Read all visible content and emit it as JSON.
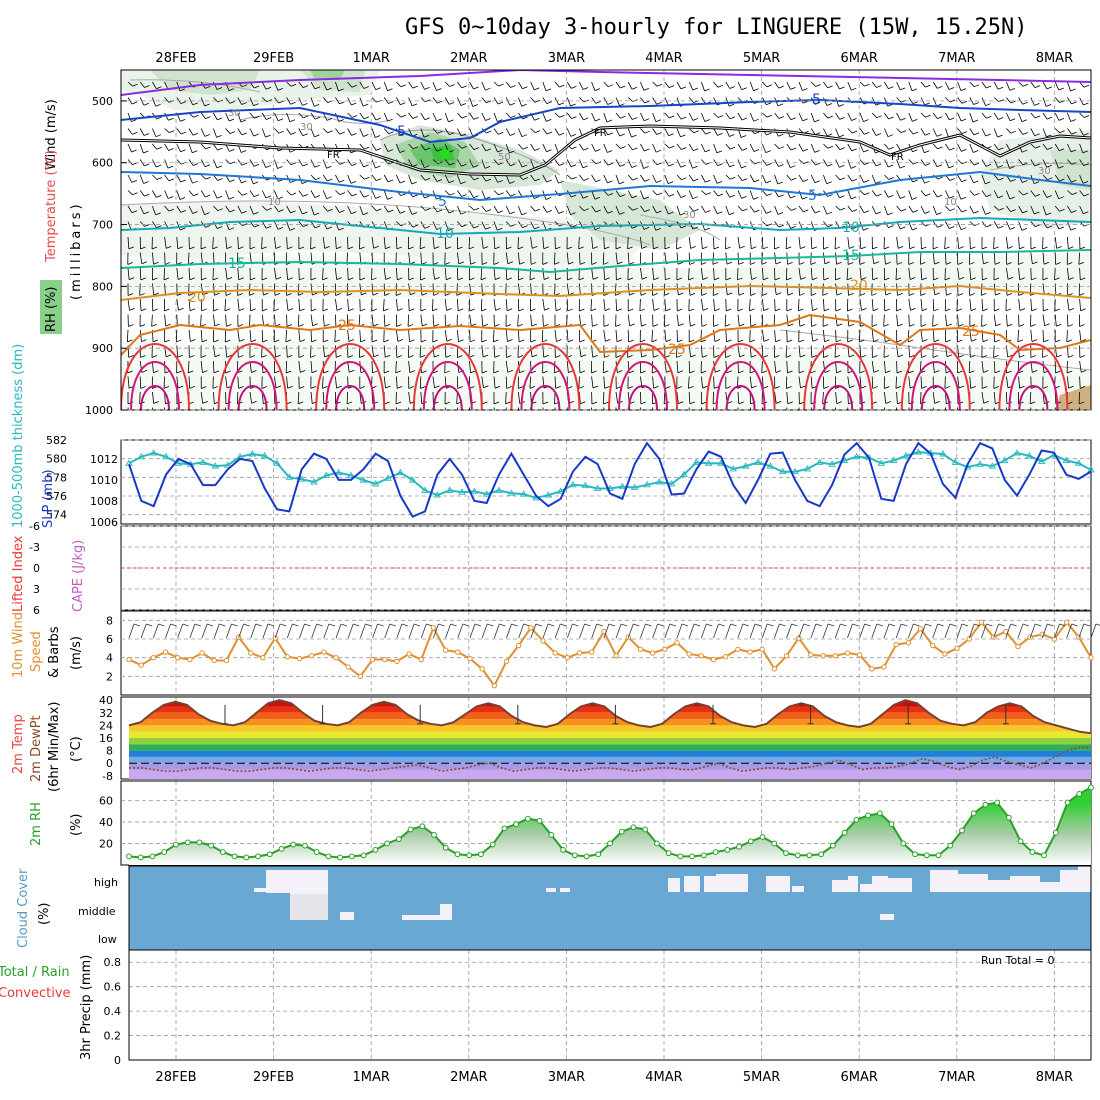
{
  "title": "GFS 0~10day 3-hourly for LINGUERE (15W, 15.25N)",
  "dates": [
    "28FEB",
    "29FEB",
    "1MAR",
    "2MAR",
    "3MAR",
    "4MAR",
    "5MAR",
    "6MAR",
    "7MAR",
    "8MAR"
  ],
  "colors": {
    "purple": "#8a2be2",
    "blue_dark": "#1846c8",
    "blue_mid": "#1e6ed8",
    "cyan": "#18a8b8",
    "teal": "#18b898",
    "orange": "#e09020",
    "orange_dark": "#e07818",
    "red": "#e83838",
    "magenta": "#d0187a",
    "rh_green": "#3fbf3f",
    "cloud": "#6aa8d4",
    "thickness": "#28b8c0",
    "slp": "#1838c8",
    "wind10": "#e09030",
    "rh2m": "#2aa02a"
  },
  "chart_data": [
    {
      "panel": "upper-air",
      "type": "heatmap",
      "ylabel_parts": [
        "Wind (m/s)",
        "Temperature (°C)",
        "RH (%)",
        "(millibars)"
      ],
      "y_ticks": [
        "500",
        "600",
        "700",
        "800",
        "900",
        "1000"
      ],
      "ylim": [
        1000,
        450
      ],
      "temperature_contours_c": [
        -5,
        5,
        10,
        15,
        20,
        25
      ],
      "contour_labels": [
        "5",
        "5",
        "5",
        "5",
        "10",
        "10",
        "15",
        "15",
        "20",
        "20",
        "25",
        "25",
        "25"
      ],
      "freezing_level_label": "FR",
      "rh_contour_labels": [
        "30",
        "30",
        "10",
        "50",
        "30",
        "10",
        "30"
      ]
    },
    {
      "panel": "thickness-slp",
      "type": "line",
      "ylabel_left": "1000-500mb thickness (dm)",
      "ylabel_right": "SLP (mb)",
      "left_ticks": [
        "582",
        "580",
        "578",
        "576",
        "574"
      ],
      "right_ticks": [
        "1012",
        "1010",
        "1008",
        "1006"
      ],
      "series": [
        {
          "name": "SLP (mb)",
          "values": [
            1011.5,
            1008,
            1007.5,
            1010.5,
            1012,
            1011.5,
            1009.5,
            1009.5,
            1011,
            1012,
            1011.8,
            1009.2,
            1007.2,
            1007,
            1011,
            1012.5,
            1012,
            1010,
            1010,
            1011,
            1012.5,
            1011.8,
            1008.5,
            1006.5,
            1007,
            1010.5,
            1012,
            1010.5,
            1008,
            1007.8,
            1010.5,
            1012.5,
            1010.5,
            1008.5,
            1007.5,
            1008.2,
            1010.8,
            1012.2,
            1011.5,
            1008.7,
            1008.2,
            1011.5,
            1013.5,
            1012,
            1008.6,
            1008.7,
            1011,
            1012.7,
            1012.2,
            1009.5,
            1007.8,
            1010,
            1012.5,
            1012.6,
            1010,
            1008,
            1007.5,
            1009.5,
            1012.4,
            1013.5,
            1012.1,
            1008.2,
            1008,
            1011.5,
            1013.5,
            1012.5,
            1009.6,
            1008.3,
            1011.5,
            1013.5,
            1013,
            1010,
            1008.5,
            1010.5,
            1012.8,
            1012.6,
            1010.5,
            1010.1,
            1010.8
          ]
        },
        {
          "name": "1000-500mb thickness (dm)",
          "values": [
            579.5,
            580.2,
            580.6,
            580.2,
            579.5,
            579.4,
            579.6,
            579.2,
            579.3,
            580.2,
            580.5,
            580.3,
            579.5,
            578,
            577.8,
            577.5,
            578.2,
            578.5,
            578.2,
            577.7,
            577.3,
            577.9,
            578.5,
            577.7,
            576.6,
            576.1,
            576.6,
            576.4,
            576.5,
            576.2,
            576.6,
            576.3,
            576.2,
            575.8,
            576.1,
            576.5,
            577.2,
            577.1,
            576.8,
            576.8,
            577,
            576.9,
            577.2,
            577.5,
            577.3,
            578.3,
            579.6,
            579.5,
            579.5,
            578.9,
            579.2,
            579.6,
            579.2,
            578.6,
            578.6,
            578.9,
            579.6,
            579.4,
            579.8,
            580.2,
            580.1,
            579.5,
            579.8,
            580.3,
            580.7,
            580.6,
            580.5,
            579.6,
            579.1,
            579.4,
            579.2,
            579.8,
            580.6,
            580.3,
            579.7,
            580.4,
            579.8,
            579.5,
            578.8
          ]
        }
      ]
    },
    {
      "panel": "stability",
      "type": "line",
      "ylabel_left": "Lifted Index",
      "ylabel_right": "CAPE (J/kg)",
      "left_ticks": [
        "-6",
        "-3",
        "0",
        "3",
        "6"
      ],
      "series": [
        {
          "name": "Lifted Index",
          "values": []
        }
      ]
    },
    {
      "panel": "wind10m",
      "type": "line",
      "ylabel": [
        "10m Wind",
        "Speed",
        "& Barbs",
        "(m/s)"
      ],
      "y_ticks": [
        "8",
        "6",
        "4",
        "2"
      ],
      "ylim": [
        0,
        9
      ],
      "series": [
        {
          "name": "10m wind speed",
          "values": [
            3.8,
            3.2,
            4.0,
            4.6,
            4.0,
            3.8,
            4.5,
            3.7,
            3.7,
            6.2,
            4.5,
            4.0,
            6.1,
            4.1,
            3.9,
            4.2,
            4.6,
            4.0,
            3.0,
            2.0,
            3.8,
            3.8,
            3.6,
            4.4,
            3.8,
            7.2,
            4.8,
            4.6,
            3.9,
            2.8,
            1.0,
            3.6,
            5.3,
            7.2,
            5.8,
            4.5,
            4.0,
            4.5,
            4.6,
            6.8,
            4.2,
            6.2,
            4.9,
            4.5,
            4.9,
            5.6,
            4.4,
            4.2,
            3.8,
            4.1,
            4.9,
            4.6,
            4.9,
            2.8,
            4.2,
            6.1,
            4.3,
            4.2,
            4.2,
            4.5,
            4.3,
            2.8,
            3.0,
            5.4,
            5.6,
            7.1,
            5.3,
            4.4,
            5.0,
            6.0,
            7.8,
            6.2,
            6.8,
            5.2,
            6.2,
            6.5,
            6.0,
            7.8,
            6.2,
            4.0
          ]
        }
      ]
    },
    {
      "panel": "temperature",
      "type": "area",
      "ylabel": [
        "2m Temp",
        "2m DewPt",
        "(6hr Min/Max)",
        "(°C)"
      ],
      "y_ticks": [
        "40",
        "32",
        "24",
        "16",
        "8",
        "0",
        "-8"
      ],
      "ylim": [
        -10,
        42
      ],
      "series": [
        {
          "name": "2m Temp",
          "values": [
            24,
            26,
            32,
            37,
            39,
            37,
            31,
            27,
            25,
            24,
            26,
            32,
            38,
            40,
            38,
            32,
            27,
            25,
            24,
            26,
            32,
            37,
            39,
            37,
            31,
            27,
            25,
            24,
            26,
            31,
            36,
            38,
            36,
            30,
            26,
            24,
            23,
            25,
            31,
            36,
            38,
            36,
            30,
            26,
            24,
            23,
            25,
            31,
            36,
            38,
            36,
            30,
            26,
            24,
            23,
            25,
            31,
            36,
            38,
            36,
            30,
            26,
            24,
            23,
            25,
            31,
            37,
            40,
            38,
            32,
            27,
            25,
            24,
            26,
            32,
            36,
            38,
            36,
            30,
            26,
            24,
            22,
            20,
            19
          ]
        },
        {
          "name": "2m DewPt",
          "values": [
            -3,
            -3,
            -4,
            -5,
            -5,
            -4,
            -3,
            -3,
            -4,
            -5,
            -5,
            -4,
            -3,
            -3,
            -4,
            -5,
            -4,
            -3,
            -3,
            -4,
            -5,
            -4,
            -3,
            -2,
            -1,
            -3,
            -5,
            -4,
            -3,
            -1,
            0,
            -3,
            -5,
            -4,
            -3,
            -3,
            -4,
            -5,
            -4,
            -3,
            -3,
            -4,
            -5,
            -4,
            -3,
            -3,
            -4,
            -4,
            -2,
            0,
            -3,
            -5,
            -4,
            -3,
            -3,
            -4,
            -3,
            -2,
            0,
            2,
            -1,
            -4,
            -3,
            -3,
            -2,
            0,
            3,
            1,
            -2,
            -4,
            -2,
            2,
            4,
            1,
            -1,
            -3,
            0,
            4,
            8,
            10,
            10
          ]
        }
      ]
    },
    {
      "panel": "rh2m",
      "type": "area",
      "ylabel": [
        "2m RH",
        "(%)"
      ],
      "y_ticks": [
        "60",
        "40",
        "20"
      ],
      "ylim": [
        0,
        78
      ],
      "series": [
        {
          "name": "2m RH",
          "values": [
            8,
            7,
            8,
            12,
            19,
            21,
            21,
            18,
            12,
            8,
            7,
            8,
            10,
            15,
            19,
            18,
            12,
            8,
            7,
            8,
            9,
            14,
            20,
            24,
            33,
            36,
            28,
            16,
            10,
            9,
            10,
            19,
            34,
            38,
            43,
            41,
            28,
            14,
            9,
            8,
            10,
            20,
            31,
            35,
            33,
            20,
            11,
            8,
            8,
            9,
            12,
            14,
            17,
            22,
            26,
            20,
            11,
            9,
            9,
            10,
            18,
            30,
            42,
            46,
            48,
            38,
            20,
            10,
            9,
            9,
            18,
            32,
            48,
            56,
            58,
            44,
            22,
            12,
            9,
            30,
            58,
            66,
            72
          ]
        }
      ]
    },
    {
      "panel": "cloud",
      "type": "heatmap",
      "ylabel": [
        "Cloud Cover",
        "(%)"
      ],
      "row_labels": [
        "high",
        "middle",
        "low"
      ]
    },
    {
      "panel": "precip",
      "type": "bar",
      "ylabel": [
        "3hr Precip (mm)",
        "Total / Rain",
        "Convective"
      ],
      "y_ticks": [
        "0.8",
        "0.6",
        "0.4",
        "0.2",
        "0"
      ],
      "ylim": [
        0,
        0.9
      ],
      "run_total": "Run Total = 0",
      "values": []
    }
  ]
}
